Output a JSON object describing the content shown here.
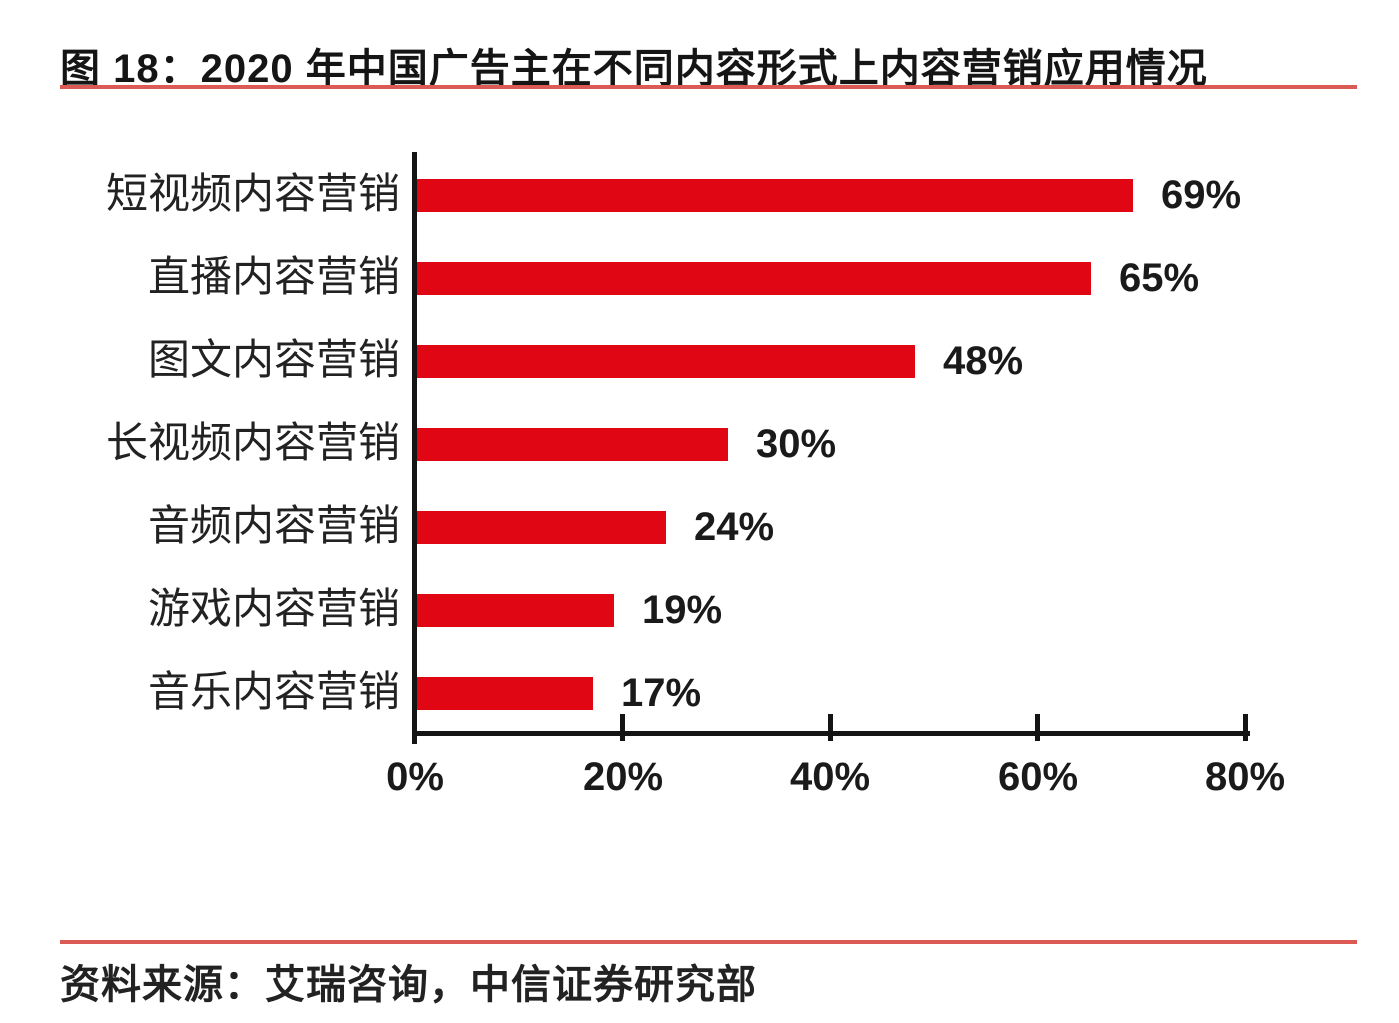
{
  "figure": {
    "title": "图 18：2020 年中国广告主在不同内容形式上内容营销应用情况",
    "source": "资料来源：艾瑞咨询，中信证券研究部"
  },
  "colors": {
    "bar_red": "#E00613",
    "rule_red": "#DC5A54",
    "axis_black": "#141414",
    "text_black": "#1a1a1a"
  },
  "chart_data": {
    "type": "bar",
    "orientation": "horizontal",
    "title": "2020 年中国广告主在不同内容形式上内容营销应用情况",
    "categories": [
      "短视频内容营销",
      "直播内容营销",
      "图文内容营销",
      "长视频内容营销",
      "音频内容营销",
      "游戏内容营销",
      "音乐内容营销"
    ],
    "values": [
      69,
      65,
      48,
      30,
      24,
      19,
      17
    ],
    "value_labels": [
      "69%",
      "65%",
      "48%",
      "30%",
      "24%",
      "19%",
      "17%"
    ],
    "x_ticks": [
      "0%",
      "20%",
      "40%",
      "60%",
      "80%"
    ],
    "xlim": [
      0,
      80
    ],
    "xlabel": "",
    "ylabel": "",
    "grid": false,
    "legend": false,
    "bar_color": "#E00613",
    "data_labels": true
  }
}
